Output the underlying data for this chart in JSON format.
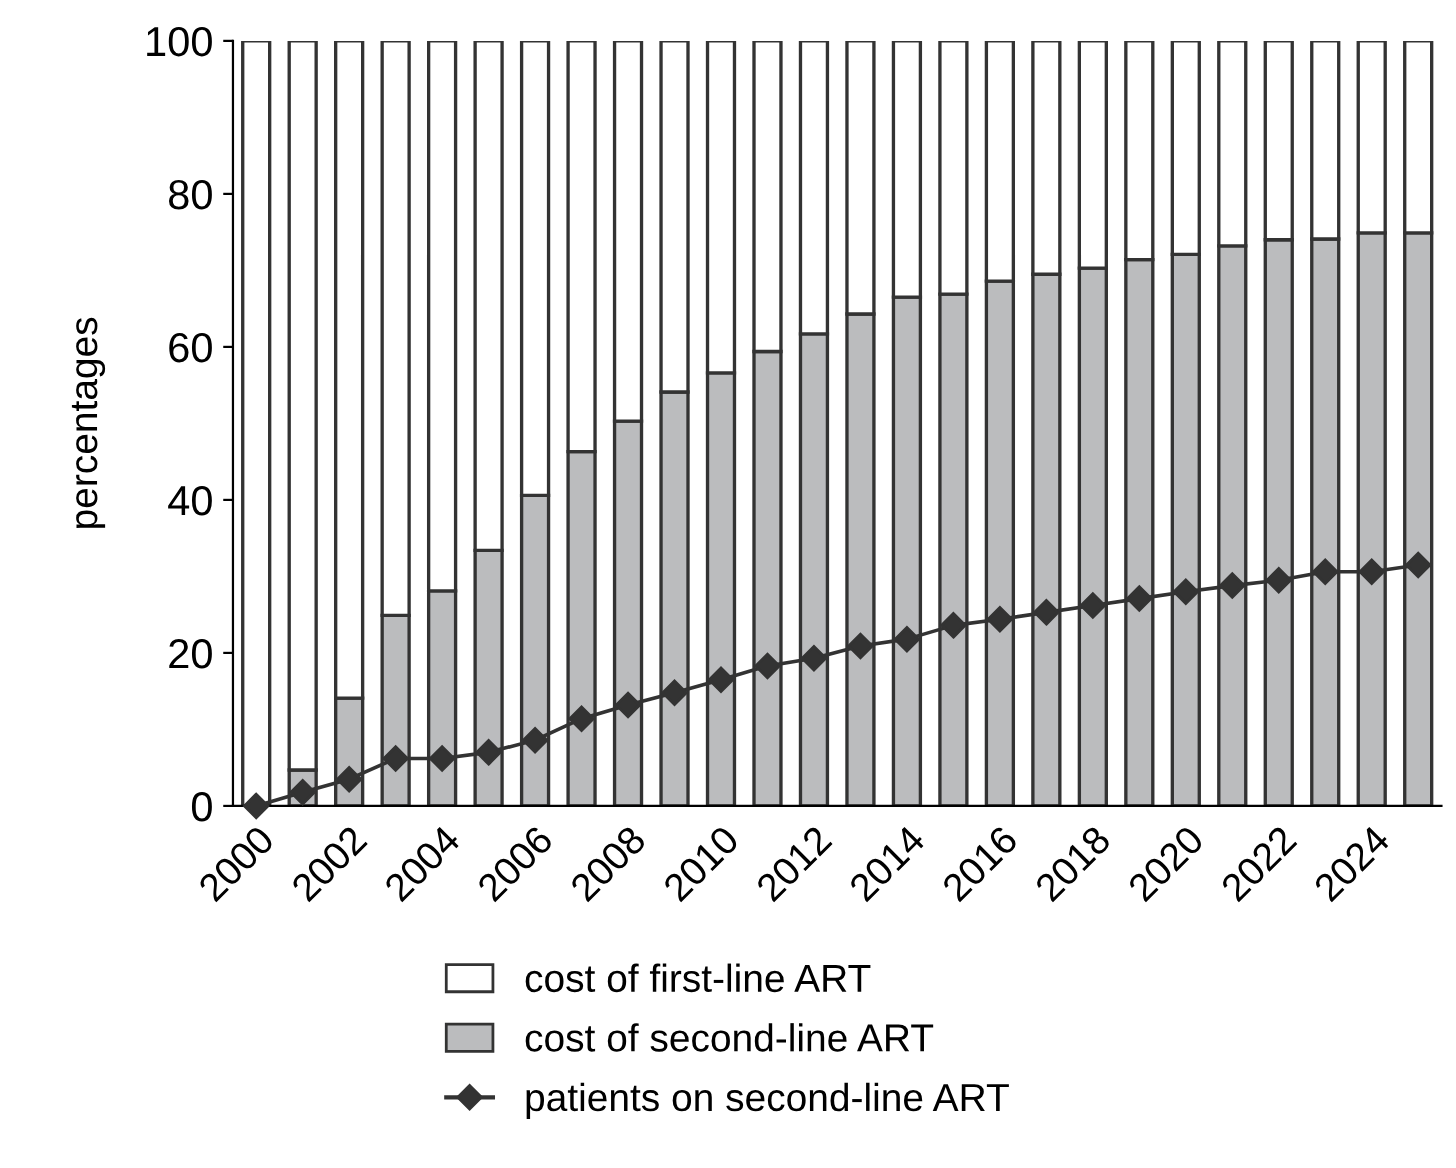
{
  "chart_data": {
    "type": "bar",
    "stacked": true,
    "ylabel": "percentages",
    "categories": [
      "2000",
      null,
      "2002",
      null,
      "2004",
      null,
      "2006",
      null,
      "2008",
      null,
      "2010",
      null,
      "2012",
      null,
      "2014",
      null,
      "2016",
      null,
      "2018",
      null,
      "2020",
      null,
      "2022",
      null,
      "2024",
      null
    ],
    "series": [
      {
        "name": "cost of second-line ART",
        "color": "#bbbcbe",
        "values": [
          0,
          4.7,
          14.1,
          24.9,
          28.1,
          33.4,
          40.6,
          46.3,
          50.3,
          54.1,
          56.6,
          59.4,
          61.7,
          64.3,
          66.5,
          66.9,
          68.6,
          69.5,
          70.3,
          71.4,
          72.1,
          73.2,
          74.0,
          74.1,
          74.9,
          74.9
        ]
      },
      {
        "name": "cost of first-line ART",
        "color": "#ffffff",
        "values": [
          100,
          95.3,
          85.9,
          75.1,
          71.9,
          66.6,
          59.4,
          53.7,
          49.7,
          45.9,
          43.4,
          40.6,
          38.3,
          35.7,
          33.5,
          33.1,
          31.4,
          30.5,
          29.7,
          28.6,
          27.9,
          26.8,
          26.0,
          25.9,
          25.1,
          25.1
        ]
      },
      {
        "name": "patients on second-line ART",
        "type": "line",
        "color": "#333333",
        "marker": "diamond",
        "line_style": "solid",
        "values": [
          0,
          1.8,
          3.5,
          6.2,
          6.2,
          7.0,
          8.6,
          11.4,
          13.2,
          14.8,
          16.5,
          18.3,
          19.3,
          20.9,
          21.8,
          23.6,
          24.4,
          25.3,
          26.2,
          27.1,
          28.0,
          28.8,
          29.5,
          30.6,
          30.6,
          31.5
        ]
      }
    ],
    "ylim": [
      0,
      100
    ],
    "yticks": [
      0,
      20,
      40,
      60,
      80,
      100
    ],
    "grid": false,
    "legend": "bottom"
  }
}
